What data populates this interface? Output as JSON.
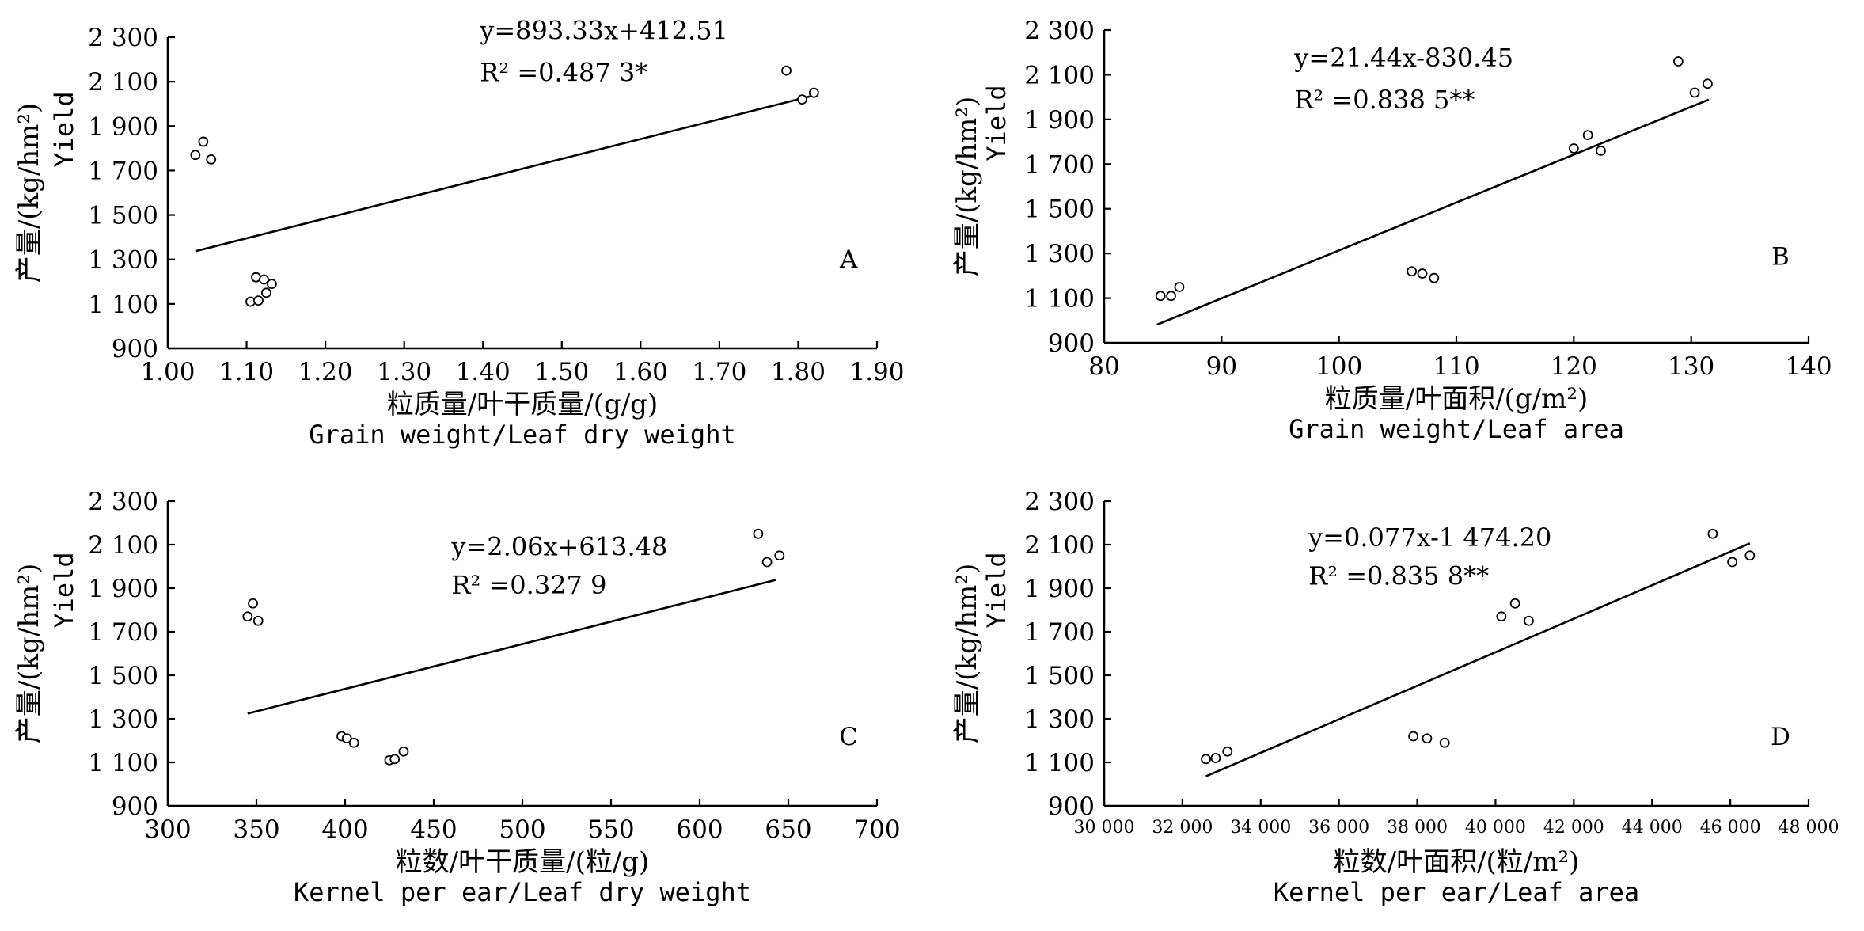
{
  "chart_data": [
    {
      "type": "scatter",
      "panel": "A",
      "xlabel_cn": "粒质量/叶干质量/(g/g)",
      "xlabel_en": "Grain weight/Leaf dry weight",
      "ylabel_cn": "产量/(kg/hm²)",
      "ylabel_en": "Yield",
      "xlim": [
        1.0,
        1.9
      ],
      "ylim": [
        900,
        2300
      ],
      "x_ticks": [
        1.0,
        1.1,
        1.2,
        1.3,
        1.4,
        1.5,
        1.6,
        1.7,
        1.8,
        1.9
      ],
      "x_tick_labels": [
        "1.00",
        "1.10",
        "1.20",
        "1.30",
        "1.40",
        "1.50",
        "1.60",
        "1.70",
        "1.80",
        "1.90"
      ],
      "y_ticks": [
        900,
        1100,
        1300,
        1500,
        1700,
        1900,
        2100,
        2300
      ],
      "y_tick_labels": [
        "900",
        "1 100",
        "1 300",
        "1 500",
        "1 700",
        "1 900",
        "2 100",
        "2 300"
      ],
      "equation": "y=893.33x+412.51",
      "r2": "R² =0.487 3*",
      "fit": {
        "slope": 893.33,
        "intercept": 412.51,
        "x_range": [
          1.035,
          1.825
        ]
      },
      "points": [
        {
          "x": 1.035,
          "y": 1770
        },
        {
          "x": 1.045,
          "y": 1830
        },
        {
          "x": 1.055,
          "y": 1750
        },
        {
          "x": 1.112,
          "y": 1220
        },
        {
          "x": 1.122,
          "y": 1210
        },
        {
          "x": 1.132,
          "y": 1190
        },
        {
          "x": 1.105,
          "y": 1110
        },
        {
          "x": 1.115,
          "y": 1115
        },
        {
          "x": 1.125,
          "y": 1150
        },
        {
          "x": 1.785,
          "y": 2150
        },
        {
          "x": 1.805,
          "y": 2020
        },
        {
          "x": 1.82,
          "y": 2050
        }
      ]
    },
    {
      "type": "scatter",
      "panel": "B",
      "xlabel_cn": "粒质量/叶面积/(g/m²)",
      "xlabel_en": "Grain weight/Leaf area",
      "ylabel_cn": "产量/(kg/hm²)",
      "ylabel_en": "Yield",
      "xlim": [
        80,
        140
      ],
      "ylim": [
        900,
        2300
      ],
      "x_ticks": [
        80,
        90,
        100,
        110,
        120,
        130,
        140
      ],
      "x_tick_labels": [
        "80",
        "90",
        "100",
        "110",
        "120",
        "130",
        "140"
      ],
      "y_ticks": [
        900,
        1100,
        1300,
        1500,
        1700,
        1900,
        2100,
        2300
      ],
      "y_tick_labels": [
        "900",
        "1 100",
        "1 300",
        "1 500",
        "1 700",
        "1 900",
        "2 100",
        "2 300"
      ],
      "equation": "y=21.44x-830.45",
      "r2": "R² =0.838 5**",
      "fit": {
        "slope": 21.44,
        "intercept": -830.45,
        "x_range": [
          84.5,
          131.5
        ]
      },
      "points": [
        {
          "x": 84.8,
          "y": 1110
        },
        {
          "x": 85.7,
          "y": 1110
        },
        {
          "x": 86.4,
          "y": 1150
        },
        {
          "x": 106.2,
          "y": 1220
        },
        {
          "x": 107.1,
          "y": 1210
        },
        {
          "x": 108.1,
          "y": 1190
        },
        {
          "x": 120.0,
          "y": 1770
        },
        {
          "x": 121.2,
          "y": 1830
        },
        {
          "x": 122.3,
          "y": 1760
        },
        {
          "x": 128.9,
          "y": 2160
        },
        {
          "x": 130.3,
          "y": 2020
        },
        {
          "x": 131.4,
          "y": 2060
        }
      ]
    },
    {
      "type": "scatter",
      "panel": "C",
      "xlabel_cn": "粒数/叶干质量/(粒/g)",
      "xlabel_en": "Kernel per ear/Leaf dry weight",
      "ylabel_cn": "产量/(kg/hm²)",
      "ylabel_en": "Yield",
      "xlim": [
        300,
        700
      ],
      "ylim": [
        900,
        2300
      ],
      "x_ticks": [
        300,
        350,
        400,
        450,
        500,
        550,
        600,
        650,
        700
      ],
      "x_tick_labels": [
        "300",
        "350",
        "400",
        "450",
        "500",
        "550",
        "600",
        "650",
        "700"
      ],
      "y_ticks": [
        900,
        1100,
        1300,
        1500,
        1700,
        1900,
        2100,
        2300
      ],
      "y_tick_labels": [
        "900",
        "1 100",
        "1 300",
        "1 500",
        "1 700",
        "1 900",
        "2 100",
        "2 300"
      ],
      "equation": "y=2.06x+613.48",
      "r2": "R² =0.327 9",
      "fit": {
        "slope": 2.06,
        "intercept": 613.48,
        "x_range": [
          345,
          643
        ]
      },
      "points": [
        {
          "x": 345,
          "y": 1770
        },
        {
          "x": 348,
          "y": 1830
        },
        {
          "x": 351,
          "y": 1750
        },
        {
          "x": 398,
          "y": 1220
        },
        {
          "x": 401,
          "y": 1210
        },
        {
          "x": 405,
          "y": 1190
        },
        {
          "x": 425,
          "y": 1110
        },
        {
          "x": 428,
          "y": 1115
        },
        {
          "x": 433,
          "y": 1150
        },
        {
          "x": 633,
          "y": 2150
        },
        {
          "x": 638,
          "y": 2020
        },
        {
          "x": 645,
          "y": 2050
        }
      ]
    },
    {
      "type": "scatter",
      "panel": "D",
      "xlabel_cn": "粒数/叶面积/(粒/m²)",
      "xlabel_en": "Kernel per ear/Leaf area",
      "ylabel_cn": "产量/(kg/hm²)",
      "ylabel_en": "Yield",
      "xlim": [
        30000,
        48000
      ],
      "ylim": [
        900,
        2300
      ],
      "x_ticks": [
        30000,
        32000,
        34000,
        36000,
        38000,
        40000,
        42000,
        44000,
        46000,
        48000
      ],
      "x_tick_labels": [
        "30 000",
        "32 000",
        "34 000",
        "36 000",
        "38 000",
        "40 000",
        "42 000",
        "44 000",
        "46 000",
        "48 000"
      ],
      "y_ticks": [
        900,
        1100,
        1300,
        1500,
        1700,
        1900,
        2100,
        2300
      ],
      "y_tick_labels": [
        "900",
        "1 100",
        "1 300",
        "1 500",
        "1 700",
        "1 900",
        "2 100",
        "2 300"
      ],
      "equation": "y=0.077x-1 474.20",
      "r2": "R² =0.835 8**",
      "fit": {
        "slope": 0.077,
        "intercept": -1474.2,
        "x_range": [
          32600,
          46500
        ]
      },
      "points": [
        {
          "x": 32600,
          "y": 1115
        },
        {
          "x": 32850,
          "y": 1120
        },
        {
          "x": 33150,
          "y": 1150
        },
        {
          "x": 37900,
          "y": 1220
        },
        {
          "x": 38250,
          "y": 1210
        },
        {
          "x": 38700,
          "y": 1190
        },
        {
          "x": 40150,
          "y": 1770
        },
        {
          "x": 40500,
          "y": 1830
        },
        {
          "x": 40850,
          "y": 1750
        },
        {
          "x": 45550,
          "y": 2150
        },
        {
          "x": 46050,
          "y": 2020
        },
        {
          "x": 46500,
          "y": 2050
        }
      ]
    }
  ]
}
